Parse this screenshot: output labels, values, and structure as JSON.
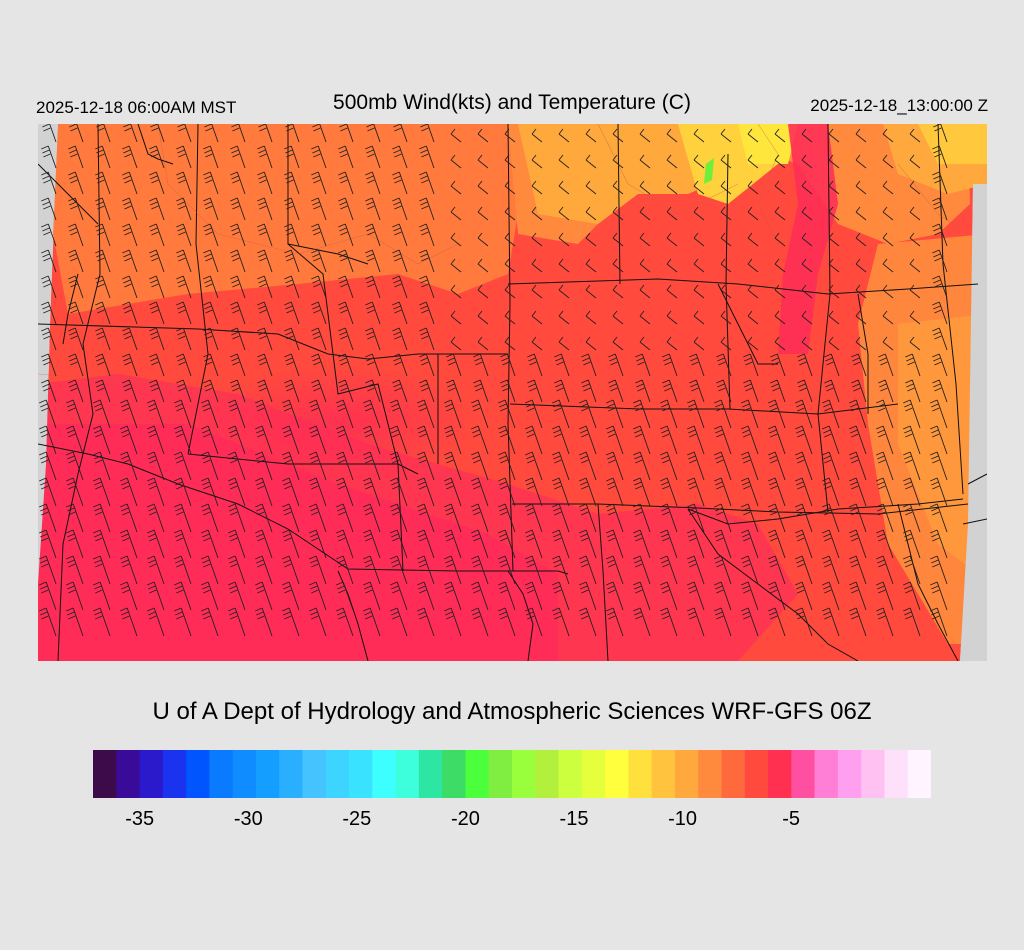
{
  "header": {
    "left_time": "2025-12-18 06:00AM MST",
    "title": "500mb Wind(kts) and Temperature (C)",
    "right_time": "2025-12-18_13:00:00 Z"
  },
  "credit": "U of A Dept of Hydrology and Atmospheric Sciences WRF-GFS 06Z",
  "colorbar": {
    "colors": [
      "#3d0a4a",
      "#3a0a99",
      "#2b19cc",
      "#1933ee",
      "#0055ff",
      "#0a7aff",
      "#0f8cff",
      "#149eff",
      "#2aafff",
      "#45c3ff",
      "#3dd5ff",
      "#39e3ff",
      "#3dffff",
      "#3dffdb",
      "#2ee6a4",
      "#3ddc66",
      "#4cff3d",
      "#80ee40",
      "#99ff3d",
      "#b3f03d",
      "#ccff3d",
      "#e6ff3d",
      "#ffff3d",
      "#ffe03d",
      "#ffc33d",
      "#ffa83d",
      "#ff8a3d",
      "#ff6a3d",
      "#ff4a3d",
      "#ff3050",
      "#ff4fa0",
      "#ff7fd6",
      "#ff9ff0",
      "#ffc0f2",
      "#ffe0fa",
      "#fff4ff"
    ],
    "labels": [
      "-35",
      "-30",
      "-25",
      "-20",
      "-15",
      "-10",
      "-5"
    ],
    "label_values": [
      -35,
      -30,
      -25,
      -20,
      -15,
      -10,
      -5
    ],
    "range": [
      -36,
      -1
    ]
  }
}
